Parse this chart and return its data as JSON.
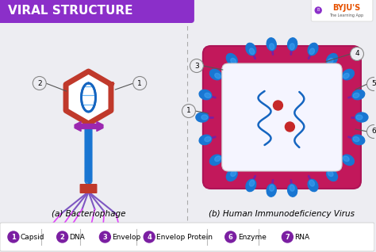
{
  "title": "VIRAL STRUCTURE",
  "title_bg": "#8b2fc9",
  "title_color": "#ffffff",
  "bg_color": "#ededf2",
  "legend_items": [
    {
      "num": "1",
      "label": "Capsid"
    },
    {
      "num": "2",
      "label": "DNA"
    },
    {
      "num": "3",
      "label": "Envelop"
    },
    {
      "num": "4",
      "label": "Envelop Protein"
    },
    {
      "num": "6",
      "label": "Enzyme"
    },
    {
      "num": "7",
      "label": "RNA"
    }
  ],
  "subtitle_left": "(a) Bacteriophage",
  "subtitle_right": "(b) Human Immunodeficiency Virus",
  "purple_dark": "#7b1fa2",
  "red": "#c0392b",
  "blue_tail": "#2471a3",
  "purple_fiber": "#7e57c2",
  "pink_fiber": "#e040fb",
  "envelope_color": "#c2185b",
  "envelope_inner": "#ab47bc",
  "spike_stalk": "#9c27b0",
  "spike_head": "#1976d2",
  "spike_head2": "#2196f3",
  "inner_box": "#f8f8ff",
  "rna_color": "#1565c0",
  "enzyme_color": "#c62828",
  "label_circle_bg": "#ededf2",
  "label_circle_ec": "#888888",
  "legend_purple": "#7b1fa2",
  "divider_color": "#aaaaaa",
  "byjus_text": "#e65100",
  "byjus_sub": "#555555"
}
